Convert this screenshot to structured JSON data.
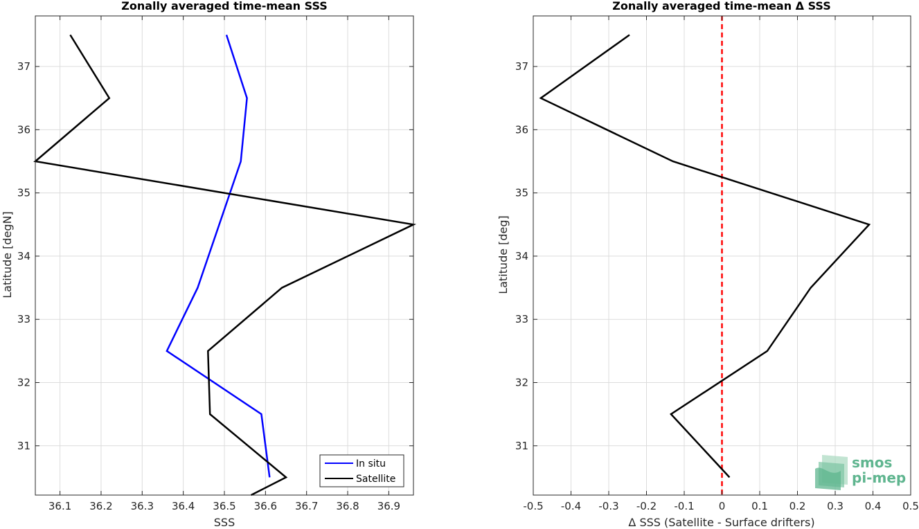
{
  "chart_data": [
    {
      "type": "line",
      "title": "Zonally averaged time-mean SSS",
      "xlabel": "SSS",
      "ylabel": "Latitude [degN]",
      "xlim": [
        36.04,
        36.96
      ],
      "ylim": [
        30.22,
        37.8
      ],
      "xticks": [
        36.1,
        36.2,
        36.3,
        36.4,
        36.5,
        36.6,
        36.7,
        36.8,
        36.9
      ],
      "xtick_labels": [
        "36.1",
        "36.2",
        "36.3",
        "36.4",
        "36.5",
        "36.6",
        "36.7",
        "36.8",
        "36.9"
      ],
      "yticks": [
        31,
        32,
        33,
        34,
        35,
        36,
        37
      ],
      "ytick_labels": [
        "31",
        "32",
        "33",
        "34",
        "35",
        "36",
        "37"
      ],
      "grid": true,
      "legend_position": "bottom-right",
      "series": [
        {
          "name": "In situ",
          "color": "#0000ff",
          "x": [
            36.505,
            36.555,
            36.54,
            36.435,
            36.36,
            36.59,
            36.61
          ],
          "y": [
            37.5,
            36.5,
            35.5,
            33.5,
            32.5,
            31.5,
            30.5
          ]
        },
        {
          "name": "Satellite",
          "color": "#000000",
          "x": [
            36.125,
            36.22,
            36.04,
            36.96,
            36.64,
            36.46,
            36.465,
            36.65,
            36.565
          ],
          "y": [
            37.5,
            36.5,
            35.5,
            34.5,
            33.5,
            32.5,
            31.5,
            30.5,
            30.22
          ]
        }
      ]
    },
    {
      "type": "line",
      "title": "Zonally averaged time-mean Δ SSS",
      "xlabel": "Δ SSS (Satellite - Surface drifters)",
      "ylabel": "Latitude [deg]",
      "xlim": [
        -0.5,
        0.5
      ],
      "ylim": [
        30.22,
        37.8
      ],
      "xticks": [
        -0.5,
        -0.4,
        -0.3,
        -0.2,
        -0.1,
        0,
        0.1,
        0.2,
        0.3,
        0.4,
        0.5
      ],
      "xtick_labels": [
        "-0.5",
        "-0.4",
        "-0.3",
        "-0.2",
        "-0.1",
        "0",
        "0.1",
        "0.2",
        "0.3",
        "0.4",
        "0.5"
      ],
      "yticks": [
        31,
        32,
        33,
        34,
        35,
        36,
        37
      ],
      "ytick_labels": [
        "31",
        "32",
        "33",
        "34",
        "35",
        "36",
        "37"
      ],
      "grid": true,
      "reference_line": {
        "x": 0,
        "color": "#ff0000",
        "style": "dashed"
      },
      "series": [
        {
          "color": "#000000",
          "x": [
            -0.245,
            -0.48,
            -0.13,
            0.39,
            0.235,
            0.12,
            -0.135,
            0.02
          ],
          "y": [
            37.5,
            36.5,
            35.5,
            34.5,
            33.5,
            32.5,
            31.5,
            30.5
          ]
        }
      ]
    }
  ],
  "watermark": {
    "line1": "smos",
    "line2": "pi-mep",
    "color": "#5fb58f"
  }
}
